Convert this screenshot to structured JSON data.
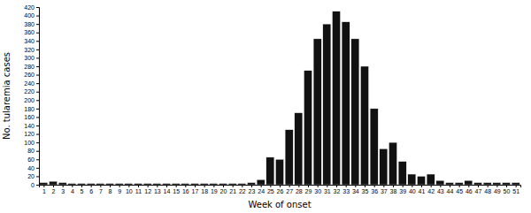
{
  "chart_data": {
    "type": "bar",
    "x": [
      1,
      2,
      3,
      4,
      5,
      6,
      7,
      8,
      9,
      10,
      11,
      12,
      13,
      14,
      15,
      16,
      17,
      18,
      19,
      20,
      21,
      22,
      23,
      24,
      25,
      26,
      27,
      28,
      29,
      30,
      31,
      32,
      33,
      34,
      35,
      36,
      37,
      38,
      39,
      40,
      41,
      42,
      43,
      44,
      45,
      46,
      47,
      48,
      49,
      50,
      51
    ],
    "values": [
      5,
      8,
      5,
      3,
      3,
      3,
      3,
      3,
      3,
      3,
      3,
      3,
      3,
      3,
      3,
      3,
      3,
      3,
      3,
      3,
      3,
      3,
      5,
      12,
      65,
      60,
      130,
      170,
      270,
      345,
      380,
      410,
      385,
      345,
      280,
      180,
      85,
      100,
      55,
      25,
      20,
      25,
      10,
      5,
      5,
      10,
      5,
      5,
      5,
      5,
      5
    ],
    "color": "#111111",
    "xlabel": "Week of onset",
    "ylabel": "No. tularemia cases",
    "xlim": [
      0.5,
      51.5
    ],
    "xticks": [
      1,
      2,
      3,
      4,
      5,
      6,
      7,
      8,
      9,
      10,
      11,
      12,
      13,
      14,
      15,
      16,
      17,
      18,
      19,
      20,
      21,
      22,
      23,
      24,
      25,
      26,
      27,
      28,
      29,
      30,
      31,
      32,
      33,
      34,
      35,
      36,
      37,
      38,
      39,
      40,
      41,
      42,
      43,
      44,
      45,
      46,
      47,
      48,
      49,
      50,
      51
    ],
    "ylim": [
      0,
      420
    ],
    "yticks": [
      0,
      20,
      40,
      60,
      80,
      100,
      120,
      140,
      160,
      180,
      200,
      220,
      240,
      260,
      280,
      300,
      320,
      340,
      360,
      380,
      400,
      420
    ],
    "grid": false
  }
}
